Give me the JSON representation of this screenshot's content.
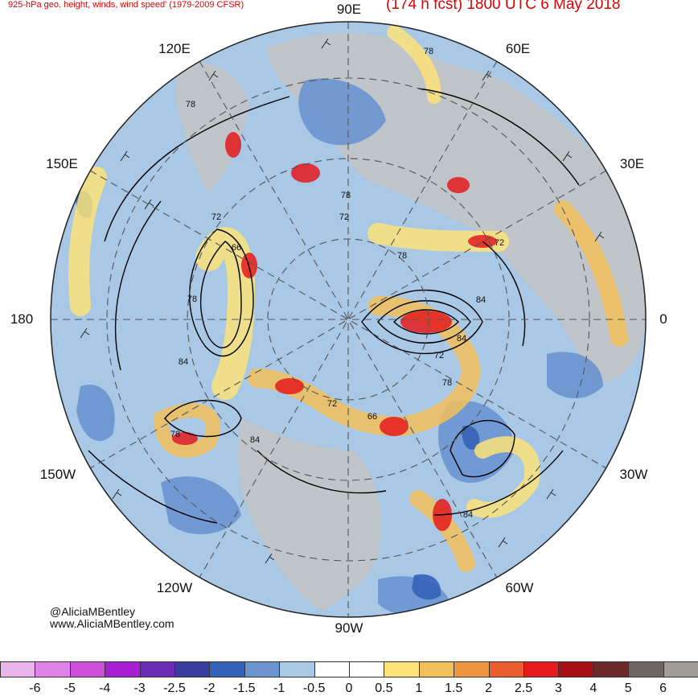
{
  "title_left": "925-hPa geo. height, winds, wind speed' (1979-2009 CFSR)",
  "title_right": "(174 h fcst) 1800 UTC 6 May 2018",
  "longitude_labels": {
    "e90": "90E",
    "e60": "60E",
    "e30": "30E",
    "zero": "0",
    "w30": "30W",
    "w60": "60W",
    "w90": "90W",
    "w120": "120W",
    "w150": "150W",
    "d180": "180",
    "e150": "150E",
    "e120": "120E"
  },
  "contour_labels": {
    "c1": "78",
    "c2": "78",
    "c3": "72",
    "c4": "78",
    "c5": "78",
    "c6": "72",
    "c7": "66",
    "c8": "78",
    "c9": "84",
    "c10": "84",
    "c11": "72",
    "c12": "84",
    "c13": "72",
    "c14": "78",
    "c15": "66",
    "c16": "72",
    "c17": "78",
    "c18": "84",
    "c19": "84"
  },
  "credit_handle": "@AliciaMBentley",
  "credit_url": "www.AliciaMBentley.com",
  "colorbar": {
    "labels": [
      "-6",
      "-5",
      "-4",
      "-3",
      "-2.5",
      "-2",
      "-1.5",
      "-1",
      "-0.5",
      "0",
      "0.5",
      "1",
      "1.5",
      "2",
      "2.5",
      "3",
      "4",
      "5",
      "6"
    ],
    "colors": [
      "#e8b4ea",
      "#e083e8",
      "#cf4fdc",
      "#a61fd2",
      "#6b2cb3",
      "#3c3c9e",
      "#3562b8",
      "#6a93d0",
      "#a8c8e6",
      "#ffffff",
      "#ffffff",
      "#fbe37a",
      "#f2c05a",
      "#ee9540",
      "#eb5c2e",
      "#e41a1c",
      "#a50f15",
      "#6e2a2a",
      "#6e6464",
      "#a39a9a"
    ]
  }
}
